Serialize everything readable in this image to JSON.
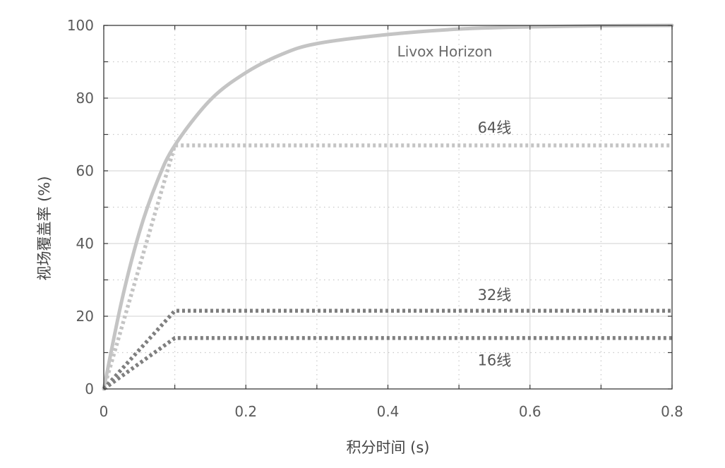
{
  "chart_data": {
    "type": "line",
    "title": "",
    "xlabel": "积分时间 (s)",
    "ylabel": "视场覆盖率 (%)",
    "xlim": [
      0,
      0.8
    ],
    "ylim": [
      0,
      100
    ],
    "xticks": [
      0,
      0.2,
      0.4,
      0.6,
      0.8
    ],
    "xtick_labels": [
      "0",
      "0.2",
      "0.4",
      "0.6",
      "0.8"
    ],
    "yticks": [
      0,
      20,
      40,
      60,
      80,
      100
    ],
    "ytick_labels": [
      "0",
      "20",
      "40",
      "60",
      "80",
      "100"
    ],
    "grid": true,
    "series": [
      {
        "name": "Livox Horizon",
        "style": "solid",
        "color": "#c4c4c4",
        "x": [
          0,
          0.025,
          0.05,
          0.075,
          0.1,
          0.15,
          0.2,
          0.25,
          0.3,
          0.4,
          0.5,
          0.6,
          0.7,
          0.8
        ],
        "y": [
          0,
          24,
          43,
          57,
          67,
          79.5,
          87,
          92,
          95,
          97.5,
          99,
          99.6,
          99.9,
          100
        ]
      },
      {
        "name": "64线",
        "style": "dotted",
        "color": "#c4c4c4",
        "x": [
          0,
          0.1,
          0.8
        ],
        "y": [
          0,
          67,
          67
        ]
      },
      {
        "name": "32线",
        "style": "dotted",
        "color": "#7f7f7f",
        "x": [
          0,
          0.1,
          0.8
        ],
        "y": [
          0,
          21.5,
          21.5
        ]
      },
      {
        "name": "16线",
        "style": "dotted",
        "color": "#7f7f7f",
        "x": [
          0,
          0.1,
          0.8
        ],
        "y": [
          0,
          14,
          14
        ]
      }
    ]
  }
}
